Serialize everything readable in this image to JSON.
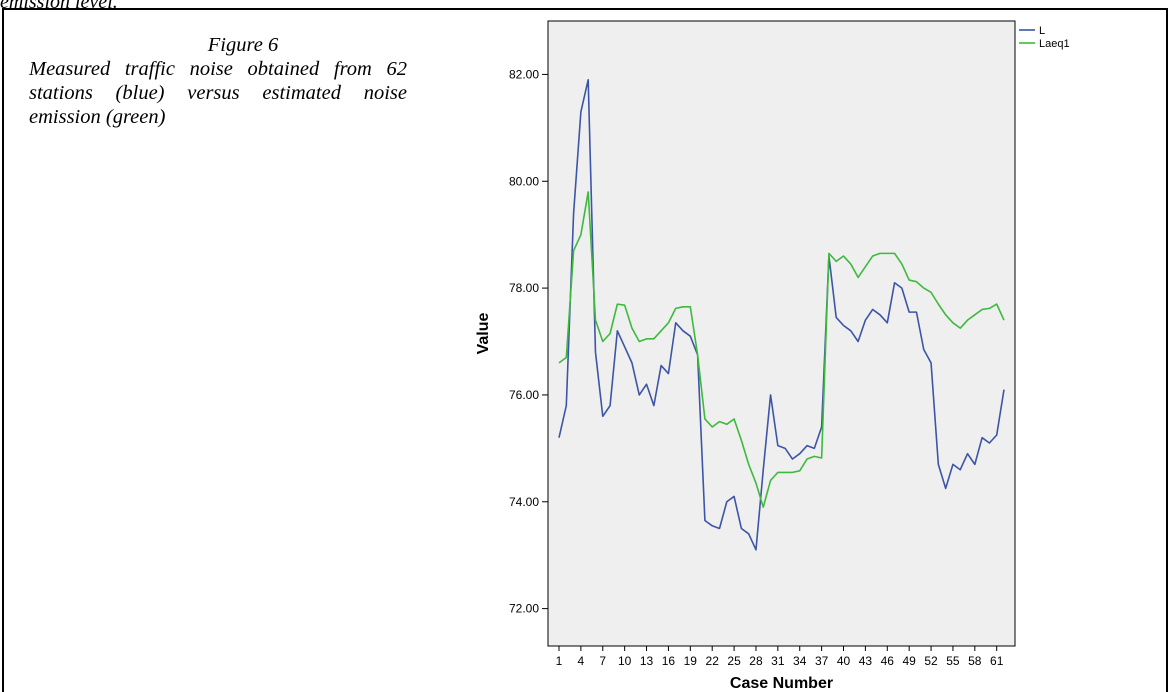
{
  "page": {
    "top_fragment": "emission level."
  },
  "caption": {
    "title": "Figure 6",
    "body": "Measured traffic noise obtained from 62 stations (blue) versus estimated noise emission (green)"
  },
  "chart_data": {
    "type": "line",
    "xlabel": "Case Number",
    "ylabel": "Value",
    "ylim": [
      71.3,
      83.0
    ],
    "y_ticks": [
      "72.00",
      "74.00",
      "76.00",
      "78.00",
      "80.00",
      "82.00"
    ],
    "x_tick_labels": [
      "1",
      "4",
      "7",
      "10",
      "13",
      "16",
      "19",
      "22",
      "25",
      "28",
      "31",
      "34",
      "37",
      "40",
      "43",
      "46",
      "49",
      "52",
      "55",
      "58",
      "61"
    ],
    "x": [
      1,
      2,
      3,
      4,
      5,
      6,
      7,
      8,
      9,
      10,
      11,
      12,
      13,
      14,
      15,
      16,
      17,
      18,
      19,
      20,
      21,
      22,
      23,
      24,
      25,
      26,
      27,
      28,
      29,
      30,
      31,
      32,
      33,
      34,
      35,
      36,
      37,
      38,
      39,
      40,
      41,
      42,
      43,
      44,
      45,
      46,
      47,
      48,
      49,
      50,
      51,
      52,
      53,
      54,
      55,
      56,
      57,
      58,
      59,
      60,
      61,
      62
    ],
    "grid": false,
    "legend": "top-right",
    "background": "#efefef",
    "series": [
      {
        "name": "L",
        "color": "#3c55a6",
        "values": [
          75.2,
          75.8,
          79.4,
          81.3,
          81.9,
          76.8,
          75.6,
          75.8,
          77.2,
          76.9,
          76.6,
          76.0,
          76.2,
          75.8,
          76.55,
          76.4,
          77.35,
          77.2,
          77.1,
          76.75,
          73.65,
          73.55,
          73.5,
          74.0,
          74.1,
          73.5,
          73.4,
          73.1,
          74.6,
          76.0,
          75.05,
          75.0,
          74.8,
          74.9,
          75.05,
          75.0,
          75.4,
          78.6,
          77.45,
          77.3,
          77.2,
          77.0,
          77.4,
          77.6,
          77.5,
          77.35,
          78.1,
          78.0,
          77.55,
          77.55,
          76.85,
          76.6,
          74.7,
          74.25,
          74.7,
          74.6,
          74.9,
          74.7,
          75.2,
          75.1,
          75.25,
          76.1
        ]
      },
      {
        "name": "Laeq1",
        "color": "#3dba3d",
        "values": [
          76.6,
          76.7,
          78.7,
          79.0,
          79.8,
          77.4,
          77.0,
          77.15,
          77.7,
          77.68,
          77.25,
          77.0,
          77.05,
          77.05,
          77.2,
          77.35,
          77.62,
          77.65,
          77.65,
          76.75,
          75.55,
          75.4,
          75.5,
          75.45,
          75.55,
          75.15,
          74.7,
          74.35,
          73.9,
          74.4,
          74.55,
          74.55,
          74.55,
          74.58,
          74.8,
          74.85,
          74.82,
          78.65,
          78.5,
          78.6,
          78.45,
          78.2,
          78.4,
          78.6,
          78.65,
          78.65,
          78.65,
          78.45,
          78.15,
          78.12,
          78.0,
          77.92,
          77.7,
          77.5,
          77.35,
          77.25,
          77.4,
          77.5,
          77.6,
          77.62,
          77.7,
          77.4
        ]
      }
    ]
  }
}
